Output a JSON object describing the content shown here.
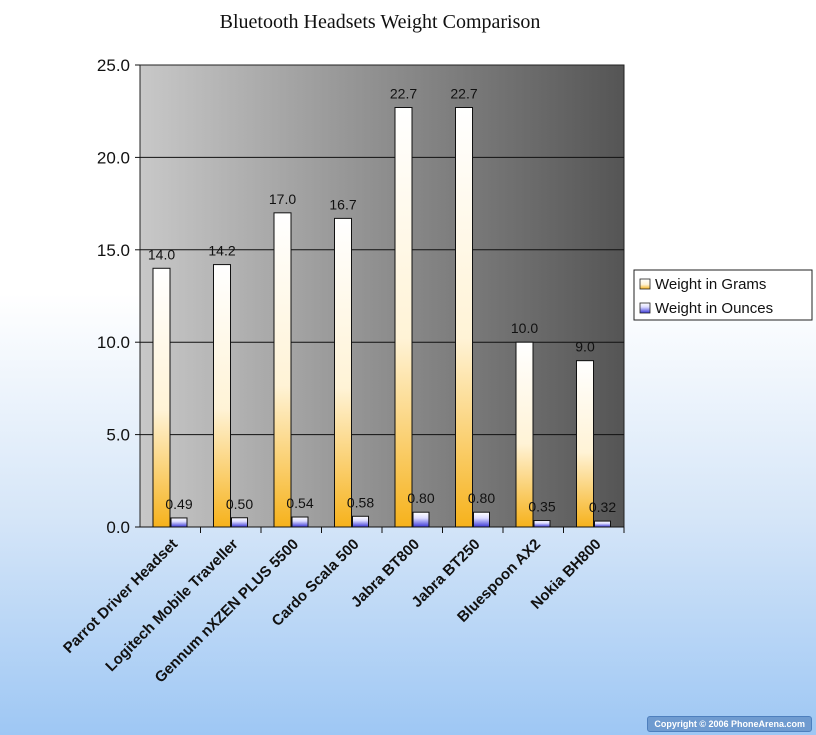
{
  "colors": {
    "grams_bar_top": "#ffffff",
    "grams_bar_bottom": "#f6b21c",
    "ounces_bar_top": "#ffffff",
    "ounces_bar_bottom": "#3a37d6",
    "plot_bg_left": "#c8c8c8",
    "plot_bg_right": "#555555",
    "page_bg_bottom": "#9ec7f4"
  },
  "chart_data": {
    "type": "bar",
    "title": "Bluetooth Headsets Weight Comparison",
    "xlabel": "",
    "ylabel": "",
    "ylim": [
      0,
      25
    ],
    "yticks": [
      "0.0",
      "5.0",
      "10.0",
      "15.0",
      "20.0",
      "25.0"
    ],
    "grid": true,
    "legend_position": "right",
    "categories": [
      "Parrot Driver Headset",
      "Logitech Mobile Traveller",
      "Gennum nXZEN PLUS 5500",
      "Cardo Scala 500",
      "Jabra BT800",
      "Jabra BT250",
      "Bluespoon AX2",
      "Nokia BH800"
    ],
    "series": [
      {
        "name": "Weight in Grams",
        "values": [
          14.0,
          14.2,
          17.0,
          16.7,
          22.7,
          22.7,
          10.0,
          9.0
        ],
        "labels": [
          "14.0",
          "14.2",
          "17.0",
          "16.7",
          "22.7",
          "22.7",
          "10.0",
          "9.0"
        ]
      },
      {
        "name": "Weight in Ounces",
        "values": [
          0.49,
          0.5,
          0.54,
          0.58,
          0.8,
          0.8,
          0.35,
          0.32
        ],
        "labels": [
          "0.49",
          "0.50",
          "0.54",
          "0.58",
          "0.80",
          "0.80",
          "0.35",
          "0.32"
        ]
      }
    ]
  },
  "footer": {
    "copyright": "Copyright © 2006 PhoneArena.com"
  }
}
